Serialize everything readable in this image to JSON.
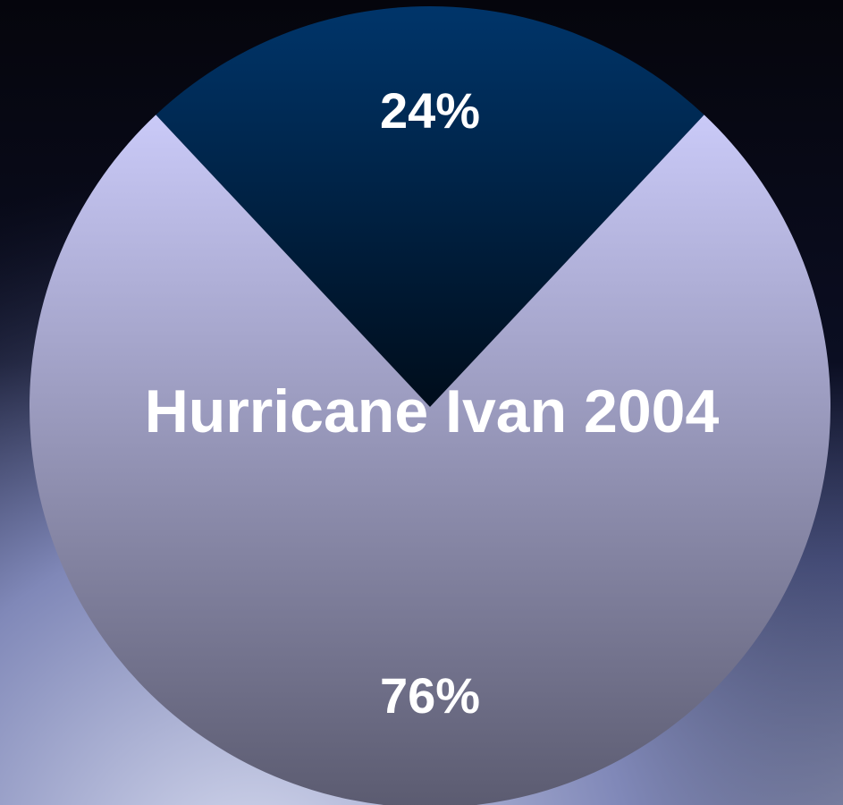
{
  "chart_data": {
    "type": "pie",
    "title": "Hurricane Ivan 2004",
    "values": [
      24,
      76
    ],
    "value_labels": [
      "24%",
      "76%"
    ],
    "colors": [
      "#00356a",
      "#cacaf8"
    ]
  }
}
